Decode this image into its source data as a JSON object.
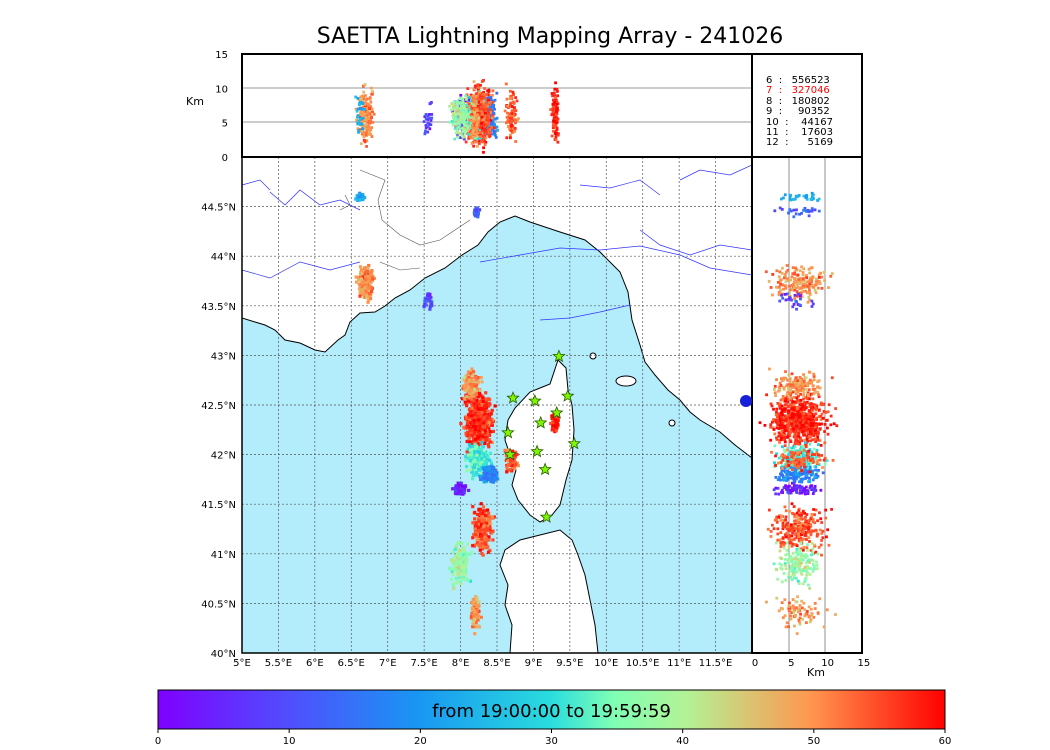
{
  "title": "SAETTA Lightning Mapping Array - 241026",
  "top_panel": {
    "ylabel": "Km",
    "yticks": [
      "0",
      "5",
      "10",
      "15"
    ]
  },
  "side_panel": {
    "xlabel": "Km",
    "xticks": [
      "0",
      "5",
      "10",
      "15"
    ]
  },
  "map": {
    "lon_ticks": [
      "5°E",
      "5.5°E",
      "6°E",
      "6.5°E",
      "7°E",
      "7.5°E",
      "8°E",
      "8.5°E",
      "9°E",
      "9.5°E",
      "10°E",
      "10.5°E",
      "11°E",
      "11.5°E"
    ],
    "lat_ticks": [
      "44.5°N",
      "44°N",
      "43.5°N",
      "43°N",
      "42.5°N",
      "42°N",
      "41.5°N",
      "41°N",
      "40.5°N",
      "40°N"
    ],
    "colors": {
      "sea": "#b3ecfb",
      "land": "#ffffff",
      "rivers": "#3333ff",
      "coast": "#000000"
    }
  },
  "station_stats": [
    {
      "label": "6  :   556523",
      "color": "#000000"
    },
    {
      "label": "7  :   327046",
      "color": "#ff0000"
    },
    {
      "label": "8  :   180802",
      "color": "#000000"
    },
    {
      "label": "9  :     90352",
      "color": "#000000"
    },
    {
      "label": "10  :    44167",
      "color": "#000000"
    },
    {
      "label": "11  :    17603",
      "color": "#000000"
    },
    {
      "label": "12  :      5169",
      "color": "#000000"
    }
  ],
  "colorbar": {
    "label": "from 19:00:00 to 19:59:59",
    "ticks": [
      "0",
      "10",
      "20",
      "30",
      "40",
      "50",
      "60"
    ]
  },
  "chart_data": {
    "type": "scatter",
    "title": "SAETTA Lightning Mapping Array - 241026",
    "xlim": [
      5,
      12
    ],
    "ylim": [
      40,
      45
    ],
    "color_scale": "rainbow",
    "color_range": [
      0,
      60
    ],
    "stations": [
      {
        "lon": 8.72,
        "lat": 42.57
      },
      {
        "lon": 9.02,
        "lat": 42.54
      },
      {
        "lon": 9.47,
        "lat": 42.59
      },
      {
        "lon": 9.1,
        "lat": 42.32
      },
      {
        "lon": 9.32,
        "lat": 42.42
      },
      {
        "lon": 8.65,
        "lat": 42.22
      },
      {
        "lon": 9.56,
        "lat": 42.11
      },
      {
        "lon": 8.68,
        "lat": 42.0
      },
      {
        "lon": 9.05,
        "lat": 42.03
      },
      {
        "lon": 9.16,
        "lat": 41.85
      },
      {
        "lon": 9.35,
        "lat": 42.99
      },
      {
        "lon": 9.18,
        "lat": 41.37
      }
    ],
    "clusters": [
      {
        "lon": 6.7,
        "lat": 43.72,
        "dlon": 0.1,
        "dlat": 0.15,
        "t": 50,
        "n": 180
      },
      {
        "lon": 6.62,
        "lat": 44.6,
        "dlon": 0.05,
        "dlat": 0.04,
        "t": 23,
        "n": 30
      },
      {
        "lon": 8.22,
        "lat": 44.45,
        "dlon": 0.04,
        "dlat": 0.05,
        "t": 12,
        "n": 25
      },
      {
        "lon": 7.55,
        "lat": 43.55,
        "dlon": 0.05,
        "dlat": 0.1,
        "t": 10,
        "n": 25
      },
      {
        "lon": 8.25,
        "lat": 42.35,
        "dlon": 0.18,
        "dlat": 0.25,
        "t": 57,
        "n": 550
      },
      {
        "lon": 8.15,
        "lat": 42.7,
        "dlon": 0.1,
        "dlat": 0.12,
        "t": 50,
        "n": 150
      },
      {
        "lon": 8.25,
        "lat": 41.95,
        "dlon": 0.15,
        "dlat": 0.15,
        "t": 32,
        "n": 200
      },
      {
        "lon": 8.4,
        "lat": 41.8,
        "dlon": 0.1,
        "dlat": 0.08,
        "t": 18,
        "n": 120
      },
      {
        "lon": 8.0,
        "lat": 41.65,
        "dlon": 0.08,
        "dlat": 0.05,
        "t": 4,
        "n": 80
      },
      {
        "lon": 8.3,
        "lat": 41.25,
        "dlon": 0.12,
        "dlat": 0.2,
        "t": 55,
        "n": 260
      },
      {
        "lon": 8.0,
        "lat": 40.9,
        "dlon": 0.12,
        "dlat": 0.2,
        "t": 38,
        "n": 160
      },
      {
        "lon": 8.2,
        "lat": 40.4,
        "dlon": 0.06,
        "dlat": 0.15,
        "t": 50,
        "n": 80
      },
      {
        "lon": 9.3,
        "lat": 42.33,
        "dlon": 0.05,
        "dlat": 0.1,
        "t": 58,
        "n": 110
      },
      {
        "lon": 8.7,
        "lat": 41.95,
        "dlon": 0.08,
        "dlat": 0.12,
        "t": 55,
        "n": 90
      }
    ]
  }
}
